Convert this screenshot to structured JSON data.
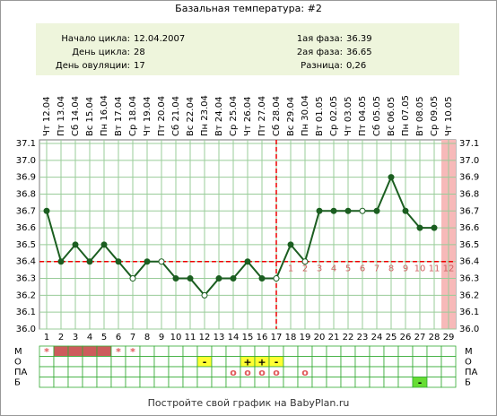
{
  "chart_data": {
    "type": "line",
    "title": "Базальная температура: #2",
    "info": [
      {
        "label": "Начало цикла:",
        "value": "12.04.2007"
      },
      {
        "label": "День цикла:",
        "value": "28"
      },
      {
        "label": "День овуляции:",
        "value": "17"
      },
      {
        "label": "1ая фаза:",
        "value": "36.39"
      },
      {
        "label": "2ая фаза:",
        "value": "36.65"
      },
      {
        "label": "Разница:",
        "value": "0,26"
      }
    ],
    "dates": [
      "Чт 12.04",
      "Пт 13.04",
      "Сб 14.04",
      "Вс 15.04",
      "Пн 16.04",
      "Вт 17.04",
      "Ср 18.04",
      "Чт 19.04",
      "Пт 20.04",
      "Сб 21.04",
      "Вс 22.04",
      "Пн 23.04",
      "Вт 24.04",
      "Ср 25.04",
      "Чт 26.04",
      "Пт 27.04",
      "Сб 28.04",
      "Вс 29.04",
      "Пн 30.04",
      "Вт 01.05",
      "Ср 02.05",
      "Чт 03.05",
      "Пт 04.05",
      "Сб 05.05",
      "Вс 06.05",
      "Пн 07.05",
      "Вт 08.05",
      "Ср 09.05",
      "Чт 10.05"
    ],
    "days": [
      1,
      2,
      3,
      4,
      5,
      6,
      7,
      8,
      9,
      10,
      11,
      12,
      13,
      14,
      15,
      16,
      17,
      18,
      19,
      20,
      21,
      22,
      23,
      24,
      25,
      26,
      27,
      28,
      29
    ],
    "series": [
      {
        "color": "#1b5e20",
        "values": [
          36.7,
          36.4,
          36.5,
          36.4,
          36.5,
          36.4,
          36.3,
          36.4,
          36.4,
          36.3,
          36.3,
          36.2,
          36.3,
          36.3,
          36.4,
          36.3,
          36.3,
          36.5,
          36.4,
          36.7,
          36.7,
          36.7,
          36.7,
          36.7,
          36.9,
          36.7,
          36.6,
          36.6,
          null
        ],
        "hollow": [
          false,
          false,
          false,
          false,
          false,
          false,
          true,
          false,
          true,
          false,
          false,
          true,
          false,
          false,
          false,
          false,
          true,
          false,
          true,
          false,
          false,
          false,
          true,
          false,
          false,
          false,
          false,
          false,
          false
        ]
      }
    ],
    "ylim": [
      36.0,
      37.1
    ],
    "yticks": [
      {
        "value": 36.0,
        "label": "36.0"
      },
      36.1,
      36.2,
      36.3,
      36.4,
      36.5,
      36.6,
      36.7,
      36.8,
      36.9,
      {
        "value": 37.0,
        "label": "37.0"
      },
      37.1
    ],
    "grid": true,
    "coverline": 36.4,
    "ovulation_day": 17,
    "highlight_day": 29,
    "phase2_labels": [
      1,
      2,
      3,
      4,
      5,
      6,
      7,
      8,
      9,
      10,
      11,
      12
    ],
    "marker_rows": [
      {
        "label": "М",
        "cells": [
          {
            "symbol": "*",
            "color": "#e05a5a"
          },
          {
            "fill": "#cd5c5c"
          },
          {
            "fill": "#cd5c5c"
          },
          {
            "fill": "#cd5c5c"
          },
          {
            "fill": "#cd5c5c"
          },
          {
            "symbol": "*",
            "color": "#e05a5a"
          },
          {
            "symbol": "*",
            "color": "#e05a5a"
          },
          null,
          null,
          null,
          null,
          null,
          null,
          null,
          null,
          null,
          null,
          null,
          null,
          null,
          null,
          null,
          null,
          null,
          null,
          null,
          null,
          null,
          null
        ]
      },
      {
        "label": "О",
        "cells": [
          null,
          null,
          null,
          null,
          null,
          null,
          null,
          null,
          null,
          null,
          null,
          {
            "symbol": "-",
            "fill": "#ffff33",
            "color": "#000000"
          },
          null,
          null,
          {
            "symbol": "+",
            "fill": "#ffff33",
            "color": "#000000"
          },
          {
            "symbol": "+",
            "fill": "#ffff33",
            "color": "#000000"
          },
          {
            "symbol": "-",
            "fill": "#ffff33",
            "color": "#000000"
          },
          null,
          null,
          null,
          null,
          null,
          null,
          null,
          null,
          null,
          null,
          null,
          null
        ]
      },
      {
        "label": "ПА",
        "cells": [
          null,
          null,
          null,
          null,
          null,
          null,
          null,
          null,
          null,
          null,
          null,
          null,
          null,
          {
            "symbol": "o",
            "color": "#e05a5a"
          },
          {
            "symbol": "o",
            "color": "#e05a5a"
          },
          {
            "symbol": "o",
            "color": "#e05a5a"
          },
          {
            "symbol": "o",
            "color": "#e05a5a"
          },
          null,
          {
            "symbol": "o",
            "color": "#e05a5a"
          },
          null,
          null,
          null,
          null,
          null,
          null,
          null,
          null,
          null,
          null
        ]
      },
      {
        "label": "Б",
        "cells": [
          null,
          null,
          null,
          null,
          null,
          null,
          null,
          null,
          null,
          null,
          null,
          null,
          null,
          null,
          null,
          null,
          null,
          null,
          null,
          null,
          null,
          null,
          null,
          null,
          null,
          null,
          {
            "symbol": "-",
            "fill": "#66dd33",
            "color": "#000000"
          },
          null,
          null
        ]
      }
    ],
    "footer": "Постройте свой график на BabyPlan.ru"
  }
}
